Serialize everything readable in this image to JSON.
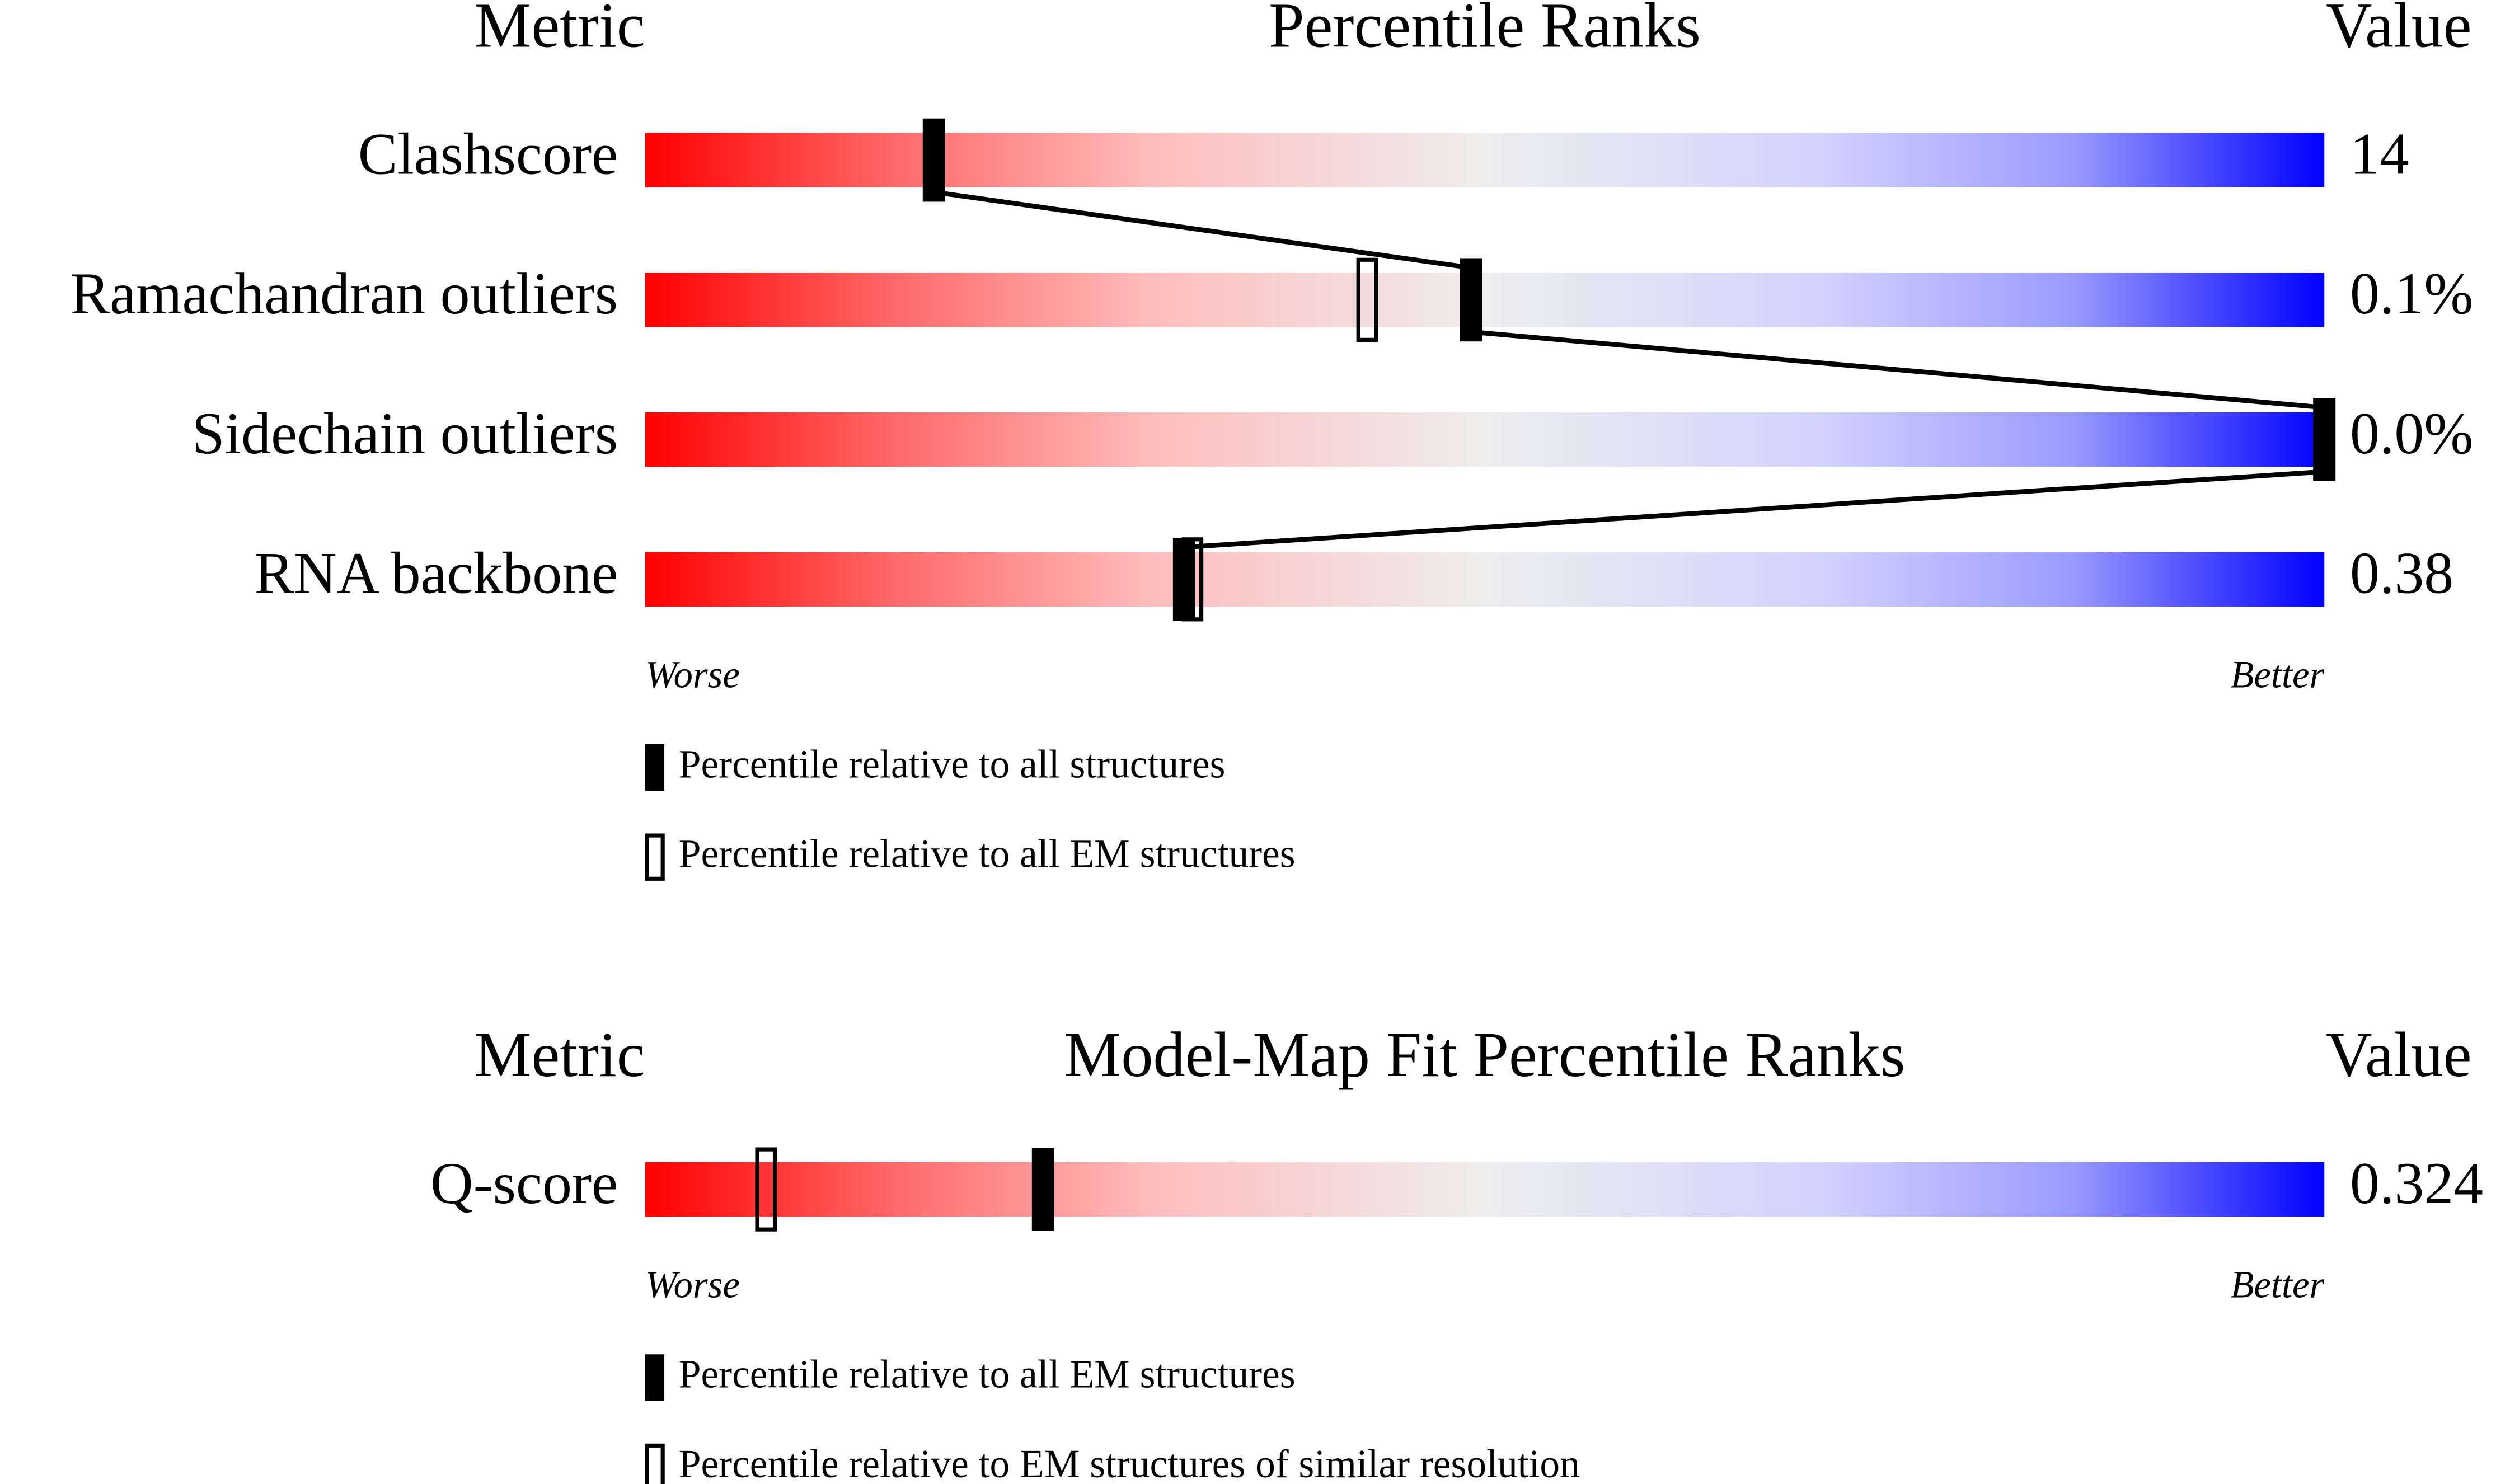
{
  "chart_data": [
    {
      "type": "percentile",
      "headers": {
        "metric": "Metric",
        "title": "Percentile Ranks",
        "value": "Value"
      },
      "xlim": [
        0,
        100
      ],
      "rows": [
        {
          "name": "Clashscore",
          "value": "14",
          "percentile": 17.2,
          "percentile_em": null
        },
        {
          "name": "Ramachandran outliers",
          "value": "0.1%",
          "percentile": 49.2,
          "percentile_em": 43.0
        },
        {
          "name": "Sidechain outliers",
          "value": "0.0%",
          "percentile": 100,
          "percentile_em": null
        },
        {
          "name": "RNA backbone",
          "value": "0.38",
          "percentile": 32.1,
          "percentile_em": 32.6
        }
      ],
      "worse": "Worse",
      "better": "Better",
      "legend": {
        "filled": "Percentile relative to all structures",
        "open": "Percentile relative to all EM structures"
      },
      "connect": true
    },
    {
      "type": "percentile",
      "headers": {
        "metric": "Metric",
        "title": "Model-Map Fit Percentile Ranks",
        "value": "Value"
      },
      "xlim": [
        0,
        100
      ],
      "rows": [
        {
          "name": "Q-score",
          "value": "0.324",
          "percentile": 23.7,
          "percentile_em": 7.2
        }
      ],
      "worse": "Worse",
      "better": "Better",
      "legend": {
        "filled": "Percentile relative to all EM structures",
        "open": "Percentile relative to EM structures of similar resolution"
      },
      "connect": false
    }
  ]
}
